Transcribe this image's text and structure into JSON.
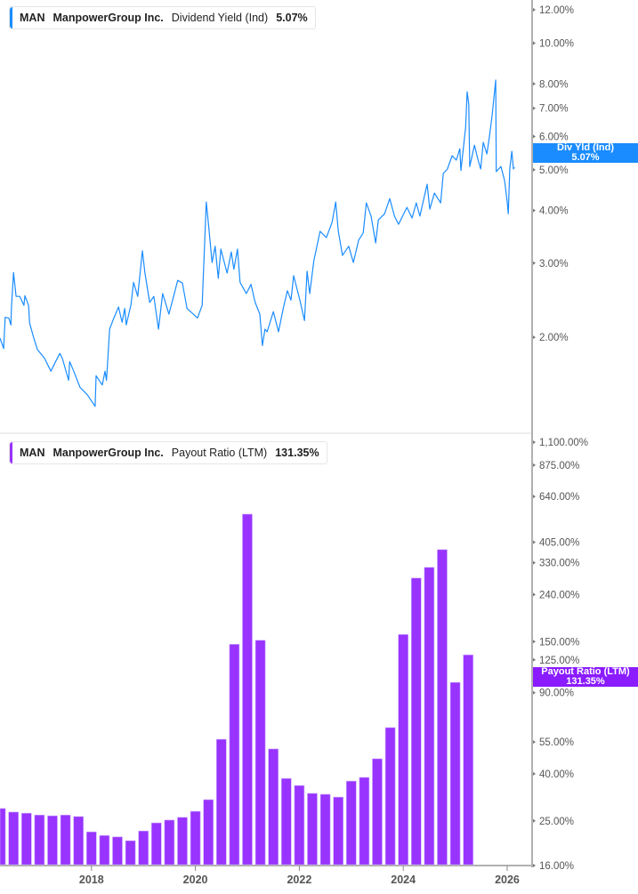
{
  "colors": {
    "yield_line": "#1a8cff",
    "payout_bars": "#9933ff",
    "yield_badge": "#1a8cff",
    "payout_badge": "#8a1cff",
    "axis": "#b0b0b0"
  },
  "top_legend": {
    "ticker": "MAN",
    "company": "ManpowerGroup Inc.",
    "metric": "Dividend Yield (Ind)",
    "value": "5.07%"
  },
  "bottom_legend": {
    "ticker": "MAN",
    "company": "ManpowerGroup Inc.",
    "metric": "Payout Ratio (LTM)",
    "value": "131.35%"
  },
  "top_badge": {
    "label": "Div Yld (Ind)",
    "value": "5.07%"
  },
  "bottom_badge": {
    "label": "Payout Ratio (LTM)",
    "value": "131.35%"
  },
  "chart_data": [
    {
      "type": "line",
      "series_label": "Dividend Yield (Ind)",
      "y_scale": "log",
      "y_ticks": [
        "12.00%",
        "10.00%",
        "8.00%",
        "7.00%",
        "6.00%",
        "5.00%",
        "4.00%",
        "3.00%",
        "2.00%"
      ],
      "y_tick_values": [
        12,
        10,
        8,
        7,
        6,
        5,
        4,
        3,
        2
      ],
      "x_unit": "year",
      "x": [
        2016.24,
        2016.31,
        2016.34,
        2016.41,
        2016.45,
        2016.46,
        2016.5,
        2016.55,
        2016.62,
        2016.7,
        2016.72,
        2016.79,
        2016.81,
        2016.89,
        2016.96,
        2017.1,
        2017.22,
        2017.3,
        2017.39,
        2017.44,
        2017.56,
        2017.58,
        2017.66,
        2017.78,
        2017.92,
        2018.07,
        2018.09,
        2018.21,
        2018.26,
        2018.29,
        2018.35,
        2018.43,
        2018.52,
        2018.59,
        2018.64,
        2018.67,
        2018.76,
        2018.81,
        2018.89,
        2018.98,
        2019.03,
        2019.12,
        2019.2,
        2019.29,
        2019.37,
        2019.49,
        2019.58,
        2019.66,
        2019.75,
        2019.84,
        2019.96,
        2020.04,
        2020.13,
        2020.18,
        2020.21,
        2020.26,
        2020.32,
        2020.38,
        2020.44,
        2020.49,
        2020.61,
        2020.69,
        2020.74,
        2020.81,
        2020.86,
        2020.98,
        2021.07,
        2021.15,
        2021.24,
        2021.29,
        2021.34,
        2021.38,
        2021.5,
        2021.6,
        2021.69,
        2021.77,
        2021.84,
        2021.89,
        2022.01,
        2022.1,
        2022.15,
        2022.2,
        2022.28,
        2022.4,
        2022.52,
        2022.63,
        2022.7,
        2022.75,
        2022.83,
        2022.95,
        2023.04,
        2023.14,
        2023.23,
        2023.29,
        2023.38,
        2023.47,
        2023.52,
        2023.64,
        2023.74,
        2023.83,
        2023.91,
        2024.07,
        2024.17,
        2024.25,
        2024.32,
        2024.46,
        2024.51,
        2024.6,
        2024.72,
        2024.77,
        2024.85,
        2024.94,
        2025.02,
        2025.09,
        2025.11,
        2025.2,
        2025.23,
        2025.26,
        2025.28,
        2025.37,
        2025.44,
        2025.49,
        2025.54,
        2025.61,
        2025.66,
        2025.71,
        2025.78,
        2025.79,
        2025.88,
        2025.95,
        2026.0,
        2026.02,
        2026.05,
        2026.09,
        2026.12,
        2026.14
      ],
      "y": [
        1.99,
        1.88,
        2.23,
        2.22,
        2.14,
        2.34,
        2.85,
        2.5,
        2.5,
        2.38,
        2.51,
        2.38,
        2.16,
        1.99,
        1.87,
        1.78,
        1.66,
        1.74,
        1.83,
        1.78,
        1.58,
        1.75,
        1.66,
        1.52,
        1.46,
        1.37,
        1.62,
        1.54,
        1.66,
        1.58,
        2.09,
        2.22,
        2.36,
        2.17,
        2.34,
        2.14,
        2.39,
        2.7,
        2.5,
        3.21,
        2.84,
        2.42,
        2.5,
        2.09,
        2.54,
        2.27,
        2.5,
        2.73,
        2.69,
        2.34,
        2.27,
        2.22,
        2.38,
        3.4,
        4.19,
        3.62,
        3.01,
        3.29,
        2.76,
        3.24,
        2.84,
        3.19,
        2.9,
        3.24,
        2.7,
        2.54,
        2.67,
        2.42,
        2.27,
        1.91,
        2.09,
        2.06,
        2.3,
        2.06,
        2.34,
        2.58,
        2.45,
        2.8,
        2.45,
        2.19,
        2.87,
        2.54,
        3.04,
        3.57,
        3.45,
        3.75,
        4.19,
        3.57,
        3.13,
        3.29,
        3.01,
        3.4,
        3.54,
        4.17,
        3.88,
        3.35,
        3.8,
        3.93,
        4.27,
        3.88,
        3.71,
        4.07,
        3.84,
        4.17,
        3.88,
        4.62,
        4.03,
        4.4,
        4.17,
        4.9,
        5.02,
        5.4,
        5.27,
        5.61,
        4.98,
        6.31,
        7.66,
        7.16,
        5.09,
        5.72,
        5.27,
        5.02,
        5.81,
        5.45,
        6.01,
        6.72,
        8.17,
        4.95,
        5.09,
        4.71,
        4.19,
        3.93,
        5.02,
        5.53,
        5.02,
        5.07
      ]
    },
    {
      "type": "bar",
      "series_label": "Payout Ratio (LTM)",
      "y_scale": "log",
      "y_ticks": [
        "1,100.00%",
        "875.00%",
        "640.00%",
        "405.00%",
        "330.00%",
        "240.00%",
        "150.00%",
        "125.00%",
        "90.00%",
        "55.00%",
        "40.00%",
        "25.00%",
        "16.00%"
      ],
      "y_tick_values": [
        1100,
        875,
        640,
        405,
        330,
        240,
        150,
        125,
        90,
        55,
        40,
        25,
        16
      ],
      "x_ticks": [
        "2018",
        "2020",
        "2022",
        "2024",
        "2026"
      ],
      "categories": [
        "2016-03",
        "2016-06",
        "2016-09",
        "2016-12",
        "2017-03",
        "2017-06",
        "2017-09",
        "2017-12",
        "2018-03",
        "2018-06",
        "2018-09",
        "2018-12",
        "2019-03",
        "2019-06",
        "2019-09",
        "2019-12",
        "2020-03",
        "2020-06",
        "2020-09",
        "2020-12",
        "2021-03",
        "2021-06",
        "2021-09",
        "2021-12",
        "2022-03",
        "2022-06",
        "2022-09",
        "2022-12",
        "2023-03",
        "2023-06",
        "2023-09",
        "2023-12",
        "2024-03",
        "2024-06",
        "2024-09",
        "2024-12",
        "2025-03"
      ],
      "values": [
        28.3,
        27.3,
        27.0,
        26.5,
        26.3,
        26.5,
        26.1,
        22.4,
        21.6,
        21.3,
        20.5,
        22.6,
        24.5,
        25.2,
        25.9,
        27.5,
        30.9,
        56.5,
        146,
        536,
        152,
        51.3,
        38.2,
        35.6,
        32.9,
        32.6,
        31.7,
        37.2,
        38.6,
        46.5,
        63.5,
        161,
        283,
        315,
        376,
        99.8,
        131.35
      ]
    }
  ]
}
